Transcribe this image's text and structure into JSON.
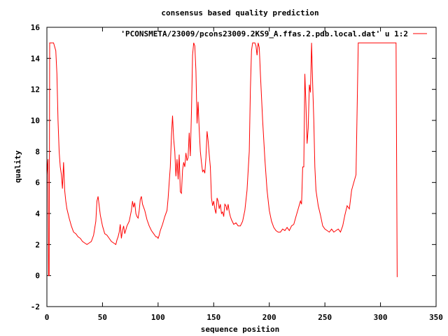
{
  "chart_data": {
    "type": "line",
    "title": "consensus based quality prediction",
    "xlabel": "sequence position",
    "ylabel": "quality",
    "xlim": [
      0,
      350
    ],
    "ylim": [
      -2,
      16
    ],
    "xticks": [
      0,
      50,
      100,
      150,
      200,
      250,
      300,
      350
    ],
    "yticks": [
      -2,
      0,
      2,
      4,
      6,
      8,
      10,
      12,
      14,
      16
    ],
    "legend_position": "top-right",
    "series": [
      {
        "name": "'PCONSMETA/23009/pcons23009.2KS9_A.ffas.2.pdb.local.dat' u 1:2",
        "color": "#ff0000",
        "x": [
          0,
          1,
          1.5,
          2,
          2.5,
          3,
          4,
          6,
          8,
          9,
          10,
          11,
          12,
          13,
          14,
          15,
          16,
          17,
          18,
          19,
          20,
          22,
          24,
          26,
          28,
          30,
          32,
          34,
          36,
          38,
          40,
          42,
          44,
          45,
          46,
          47,
          48,
          50,
          52,
          54,
          56,
          58,
          60,
          62,
          63,
          64,
          65,
          66,
          67,
          68,
          69,
          70,
          72,
          74,
          76,
          77,
          78,
          79,
          80,
          81,
          82,
          83,
          84,
          85,
          86,
          88,
          90,
          92,
          94,
          96,
          98,
          99,
          100,
          101,
          102,
          104,
          106,
          108,
          109,
          110,
          111,
          112,
          113,
          114,
          115,
          116,
          117,
          118,
          119,
          120,
          121,
          122,
          123,
          124,
          125,
          126,
          127,
          128,
          129,
          130,
          131,
          132,
          133,
          134,
          135,
          136,
          137,
          138,
          139,
          140,
          141,
          142,
          143,
          144,
          145,
          146,
          147,
          148,
          149,
          150,
          151,
          152,
          153,
          154,
          155,
          156,
          157,
          158,
          159,
          160,
          161,
          162,
          163,
          164,
          165,
          166,
          168,
          170,
          172,
          174,
          176,
          178,
          180,
          182,
          183,
          184,
          185,
          186,
          187,
          188,
          189,
          190,
          191,
          192,
          194,
          196,
          198,
          200,
          202,
          204,
          206,
          208,
          210,
          212,
          214,
          216,
          218,
          220,
          222,
          224,
          226,
          228,
          229,
          230,
          231,
          232,
          233,
          234,
          235,
          236,
          237,
          238,
          239,
          240,
          241,
          242,
          244,
          246,
          248,
          250,
          252,
          254,
          256,
          258,
          260,
          262,
          264,
          266,
          268,
          270,
          272,
          274,
          276,
          278,
          280,
          290,
          300,
          310,
          314,
          315
        ],
        "y": [
          6.5,
          7.5,
          0,
          0,
          15,
          15,
          15,
          15,
          14.5,
          13,
          10,
          8,
          7,
          6.5,
          5.6,
          7.3,
          5.5,
          4.8,
          4.3,
          4,
          3.7,
          3.2,
          2.8,
          2.7,
          2.5,
          2.4,
          2.2,
          2.1,
          2,
          2.1,
          2.2,
          2.6,
          3.5,
          4.8,
          5.1,
          4.5,
          3.9,
          3.2,
          2.7,
          2.6,
          2.4,
          2.2,
          2.1,
          2,
          2.3,
          2.5,
          2.8,
          3.3,
          2.4,
          2.9,
          3.2,
          2.7,
          3.2,
          3.5,
          4.2,
          4.8,
          4.4,
          4.7,
          4.0,
          3.8,
          3.7,
          4.2,
          4.9,
          5.1,
          4.6,
          4.2,
          3.6,
          3.2,
          2.9,
          2.7,
          2.5,
          2.5,
          2.4,
          2.6,
          2.9,
          3.3,
          3.8,
          4.2,
          5,
          6,
          7,
          9,
          10.3,
          8.8,
          8,
          6.4,
          7.5,
          6.2,
          7.8,
          5.4,
          5.3,
          6.8,
          7.3,
          7,
          7.9,
          7.4,
          7.6,
          9.2,
          7.7,
          10.5,
          14.2,
          15,
          14.8,
          13.2,
          9.8,
          11.2,
          9.4,
          8,
          7.3,
          6.7,
          6.8,
          6.6,
          7.6,
          9.3,
          8.7,
          7.8,
          7,
          5,
          4.5,
          4.8,
          4.3,
          4.0,
          5.0,
          4.8,
          4.3,
          4.6,
          4,
          4.1,
          3.8,
          4.6,
          4.5,
          4.2,
          4.6,
          4.1,
          3.8,
          3.6,
          3.3,
          3.4,
          3.2,
          3.2,
          3.5,
          4.2,
          5.5,
          8,
          12,
          14.5,
          15,
          15,
          15,
          14.8,
          14.2,
          15,
          14.7,
          13,
          10,
          7.5,
          5.5,
          4.2,
          3.5,
          3.1,
          2.9,
          2.8,
          2.8,
          3,
          2.9,
          3.1,
          2.9,
          3.2,
          3.3,
          3.8,
          4.3,
          4.8,
          4.6,
          7,
          7,
          13,
          11,
          8.5,
          9.5,
          12.3,
          11.8,
          15,
          12.3,
          10,
          7,
          5.5,
          4.5,
          3.9,
          3.2,
          3,
          2.9,
          2.8,
          3,
          2.8,
          2.9,
          3,
          2.8,
          3.2,
          3.9,
          4.5,
          4.3,
          5.5,
          6,
          6.5,
          15,
          15,
          15,
          15,
          15,
          -0.1
        ]
      }
    ]
  }
}
